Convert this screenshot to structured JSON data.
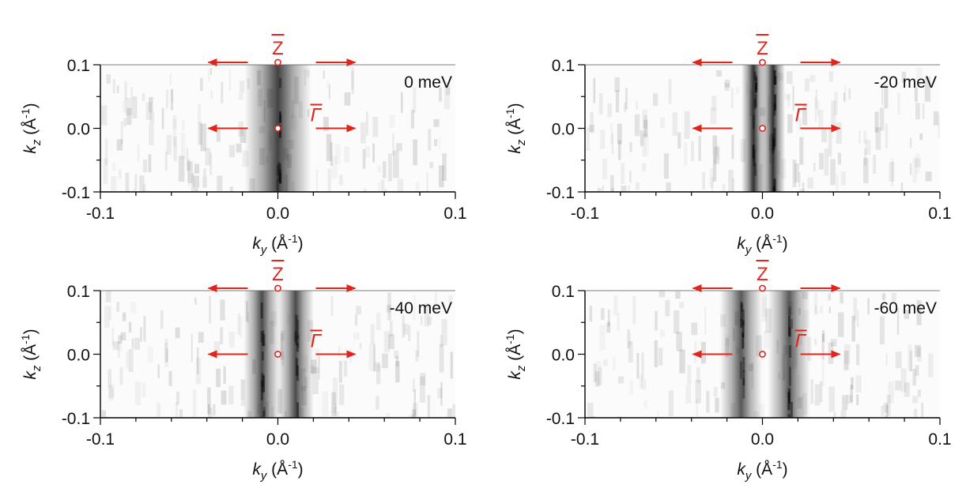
{
  "colors": {
    "arrow": "#e1251b",
    "band": "#1a1a1a",
    "axis": "#000000"
  },
  "chart_data": [
    {
      "type": "heatmap",
      "xlabel": "k_y (Å-1)",
      "ylabel": "k_z (Å-1)",
      "xlim": [
        -0.1,
        0.1
      ],
      "ylim": [
        -0.1,
        0.1
      ],
      "xticks": [
        "-0.1",
        "0.0",
        "0.1"
      ],
      "yticks": [
        "-0.1",
        "0.0",
        "0.1"
      ],
      "annotation": "0 meV",
      "points": {
        "top": "Z",
        "center": "Γ"
      },
      "band_profile": [
        {
          "ky": 0.0,
          "width": 0.011,
          "intensity": 0.82
        }
      ]
    },
    {
      "type": "heatmap",
      "xlabel": "k_y (Å-1)",
      "ylabel": "k_z (Å-1)",
      "xlim": [
        -0.1,
        0.1
      ],
      "ylim": [
        -0.1,
        0.1
      ],
      "xticks": [
        "-0.1",
        "0.0",
        "0.1"
      ],
      "yticks": [
        "-0.1",
        "0.0",
        "0.1"
      ],
      "annotation": "-20 meV",
      "points": {
        "top": "Z",
        "center": "Γ"
      },
      "band_profile": [
        {
          "ky": -0.005,
          "width": 0.004,
          "intensity": 0.9
        },
        {
          "ky": 0.006,
          "width": 0.004,
          "intensity": 0.9
        }
      ]
    },
    {
      "type": "heatmap",
      "xlabel": "k_y (Å-1)",
      "ylabel": "k_z (Å-1)",
      "xlim": [
        -0.1,
        0.1
      ],
      "ylim": [
        -0.1,
        0.1
      ],
      "xticks": [
        "-0.1",
        "0.0",
        "0.1"
      ],
      "yticks": [
        "-0.1",
        "0.0",
        "0.1"
      ],
      "annotation": "-40 meV",
      "points": {
        "top": "Z",
        "center": "Γ"
      },
      "band_profile": [
        {
          "ky": -0.009,
          "width": 0.006,
          "intensity": 0.78
        },
        {
          "ky": 0.01,
          "width": 0.006,
          "intensity": 0.78
        }
      ]
    },
    {
      "type": "heatmap",
      "xlabel": "k_y (Å-1)",
      "ylabel": "k_z (Å-1)",
      "xlim": [
        -0.1,
        0.1
      ],
      "ylim": [
        -0.1,
        0.1
      ],
      "xticks": [
        "-0.1",
        "0.0",
        "0.1"
      ],
      "yticks": [
        "-0.1",
        "0.0",
        "0.1"
      ],
      "annotation": "-60 meV",
      "points": {
        "top": "Z",
        "center": "Γ"
      },
      "band_profile": [
        {
          "ky": -0.012,
          "width": 0.007,
          "intensity": 0.72
        },
        {
          "ky": 0.015,
          "width": 0.007,
          "intensity": 0.72
        }
      ]
    }
  ]
}
